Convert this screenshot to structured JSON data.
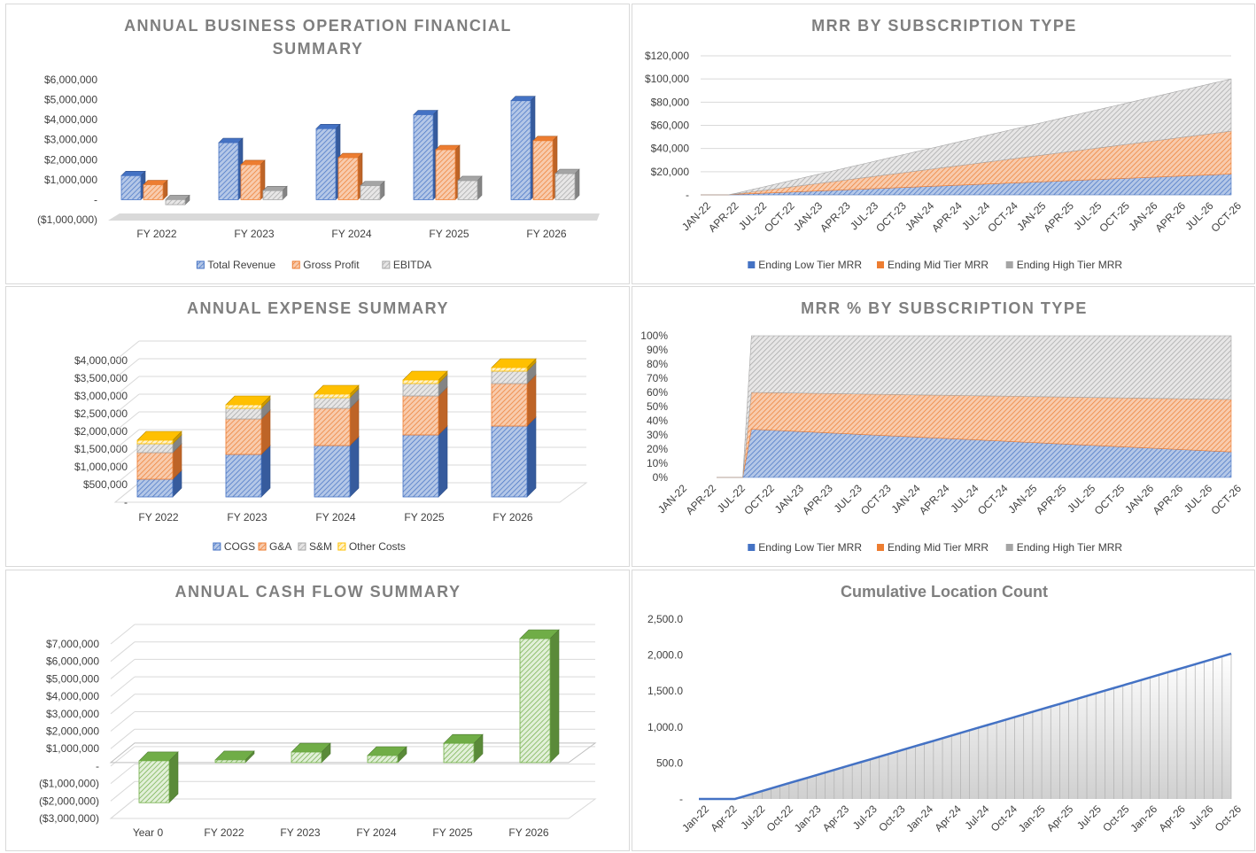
{
  "colors": {
    "blue": "#4472c4",
    "blue_light": "#b4c7e7",
    "orange": "#ed7d31",
    "orange_light": "#f8cbad",
    "gray": "#a5a5a5",
    "gray_light": "#e7e6e6",
    "yellow": "#ffc000",
    "yellow_light": "#fff2cc",
    "green": "#70ad47",
    "green_light": "#e2f0d9",
    "line": "#4472c4",
    "title": "#7f7f7f",
    "grid": "#d9d9d9"
  },
  "chart_data": [
    {
      "id": "financial",
      "type": "bar",
      "title_lines": [
        "ANNUAL BUSINESS OPERATION FINANCIAL",
        "SUMMARY"
      ],
      "categories": [
        "FY 2022",
        "FY 2023",
        "FY 2024",
        "FY 2025",
        "FY 2026"
      ],
      "series": [
        {
          "name": "Total Revenue",
          "values": [
            1200000,
            2850000,
            3550000,
            4250000,
            4950000
          ]
        },
        {
          "name": "Gross Profit",
          "values": [
            750000,
            1750000,
            2100000,
            2500000,
            2950000
          ]
        },
        {
          "name": "EBITDA",
          "values": [
            -250000,
            450000,
            700000,
            950000,
            1300000
          ]
        }
      ],
      "yticks": [
        "$6,000,000",
        "$5,000,000",
        "$4,000,000",
        "$3,000,000",
        "$2,000,000",
        "$1,000,000",
        "-",
        "($1,000,000)"
      ],
      "ylim": [
        -1000000,
        6000000
      ],
      "legend": [
        "Total Revenue",
        "Gross Profit",
        "EBITDA"
      ]
    },
    {
      "id": "mrr",
      "type": "area",
      "stacked": true,
      "title": "MRR BY SUBSCRIPTION TYPE",
      "x_labels": [
        "JAN-22",
        "APR-22",
        "JUL-22",
        "OCT-22",
        "JAN-23",
        "APR-23",
        "JUL-23",
        "OCT-23",
        "JAN-24",
        "APR-24",
        "JUL-24",
        "OCT-24",
        "JAN-25",
        "APR-25",
        "JUL-25",
        "OCT-25",
        "JAN-26",
        "APR-26",
        "JUL-26",
        "OCT-26"
      ],
      "points": 60,
      "start_index": 4,
      "series": [
        {
          "name": "Ending Low Tier MRR",
          "start": 500,
          "end": 18000
        },
        {
          "name": "Ending Mid Tier MRR",
          "start": 400,
          "end": 37000
        },
        {
          "name": "Ending High Tier MRR",
          "start": 600,
          "end": 45000
        }
      ],
      "yticks": [
        "$120,000",
        "$100,000",
        "$80,000",
        "$60,000",
        "$40,000",
        "$20,000",
        "-"
      ],
      "ylim": [
        0,
        120000
      ],
      "legend": [
        "Ending Low Tier MRR",
        "Ending Mid Tier MRR",
        "Ending High Tier MRR"
      ]
    },
    {
      "id": "expense",
      "type": "bar",
      "stacked": true,
      "title": "ANNUAL EXPENSE SUMMARY",
      "categories": [
        "FY 2022",
        "FY 2023",
        "FY 2024",
        "FY 2025",
        "FY 2026"
      ],
      "series": [
        {
          "name": "COGS",
          "values": [
            500000,
            1200000,
            1450000,
            1750000,
            2000000
          ]
        },
        {
          "name": "G&A",
          "values": [
            750000,
            1000000,
            1050000,
            1100000,
            1200000
          ]
        },
        {
          "name": "S&M",
          "values": [
            250000,
            300000,
            300000,
            350000,
            350000
          ]
        },
        {
          "name": "Other Costs",
          "values": [
            100000,
            100000,
            100000,
            100000,
            100000
          ]
        }
      ],
      "yticks": [
        "$4,000,000",
        "$3,500,000",
        "$3,000,000",
        "$2,500,000",
        "$2,000,000",
        "$1,500,000",
        "$1,000,000",
        "$500,000",
        "-"
      ],
      "ylim": [
        0,
        4000000
      ],
      "legend": [
        "COGS",
        "G&A",
        "S&M",
        "Other Costs"
      ]
    },
    {
      "id": "mrrpct",
      "type": "area",
      "stacked": true,
      "percent": true,
      "title": "MRR % BY SUBSCRIPTION TYPE",
      "x_labels": [
        "JAN-22",
        "APR-22",
        "JUL-22",
        "OCT-22",
        "JAN-23",
        "APR-23",
        "JUL-23",
        "OCT-23",
        "JAN-24",
        "APR-24",
        "JUL-24",
        "OCT-24",
        "JAN-25",
        "APR-25",
        "JUL-25",
        "OCT-25",
        "JAN-26",
        "APR-26",
        "JUL-26",
        "OCT-26"
      ],
      "points": 60,
      "start_index": 4,
      "series": [
        {
          "name": "Ending Low Tier MRR",
          "start": 0.34,
          "end": 0.18
        },
        {
          "name": "Ending Mid Tier MRR",
          "start": 0.26,
          "end": 0.37
        },
        {
          "name": "Ending High Tier MRR",
          "start": 0.4,
          "end": 0.45
        }
      ],
      "yticks": [
        "100%",
        "90%",
        "80%",
        "70%",
        "60%",
        "50%",
        "40%",
        "30%",
        "20%",
        "10%",
        "0%"
      ],
      "ylim": [
        0,
        1
      ],
      "legend": [
        "Ending Low Tier MRR",
        "Ending Mid Tier MRR",
        "Ending High Tier MRR"
      ]
    },
    {
      "id": "cashflow",
      "type": "bar",
      "title": "ANNUAL CASH FLOW SUMMARY",
      "categories": [
        "Year 0",
        "FY 2022",
        "FY 2023",
        "FY 2024",
        "FY 2025",
        "FY 2026"
      ],
      "values": [
        -2300000,
        50000,
        500000,
        300000,
        1000000,
        7000000
      ],
      "yticks": [
        "$7,000,000",
        "$6,000,000",
        "$5,000,000",
        "$4,000,000",
        "$3,000,000",
        "$2,000,000",
        "$1,000,000",
        "-",
        "($1,000,000)",
        "($2,000,000)",
        "($3,000,000)"
      ],
      "ylim": [
        -3000000,
        7000000
      ]
    },
    {
      "id": "location",
      "type": "line",
      "title": "Cumulative Location Count",
      "x_labels": [
        "Jan-22",
        "Apr-22",
        "Jul-22",
        "Oct-22",
        "Jan-23",
        "Apr-23",
        "Jul-23",
        "Oct-23",
        "Jan-24",
        "Apr-24",
        "Jul-24",
        "Oct-24",
        "Jan-25",
        "Apr-25",
        "Jul-25",
        "Oct-25",
        "Jan-26",
        "Apr-26",
        "Jul-26",
        "Oct-26"
      ],
      "points": 60,
      "start_index": 4,
      "y_end": 2020,
      "yticks": [
        "2,500.0",
        "2,000.0",
        "1,500.0",
        "1,000.0",
        "500.0",
        "-"
      ],
      "ylim": [
        0,
        2500
      ]
    }
  ]
}
